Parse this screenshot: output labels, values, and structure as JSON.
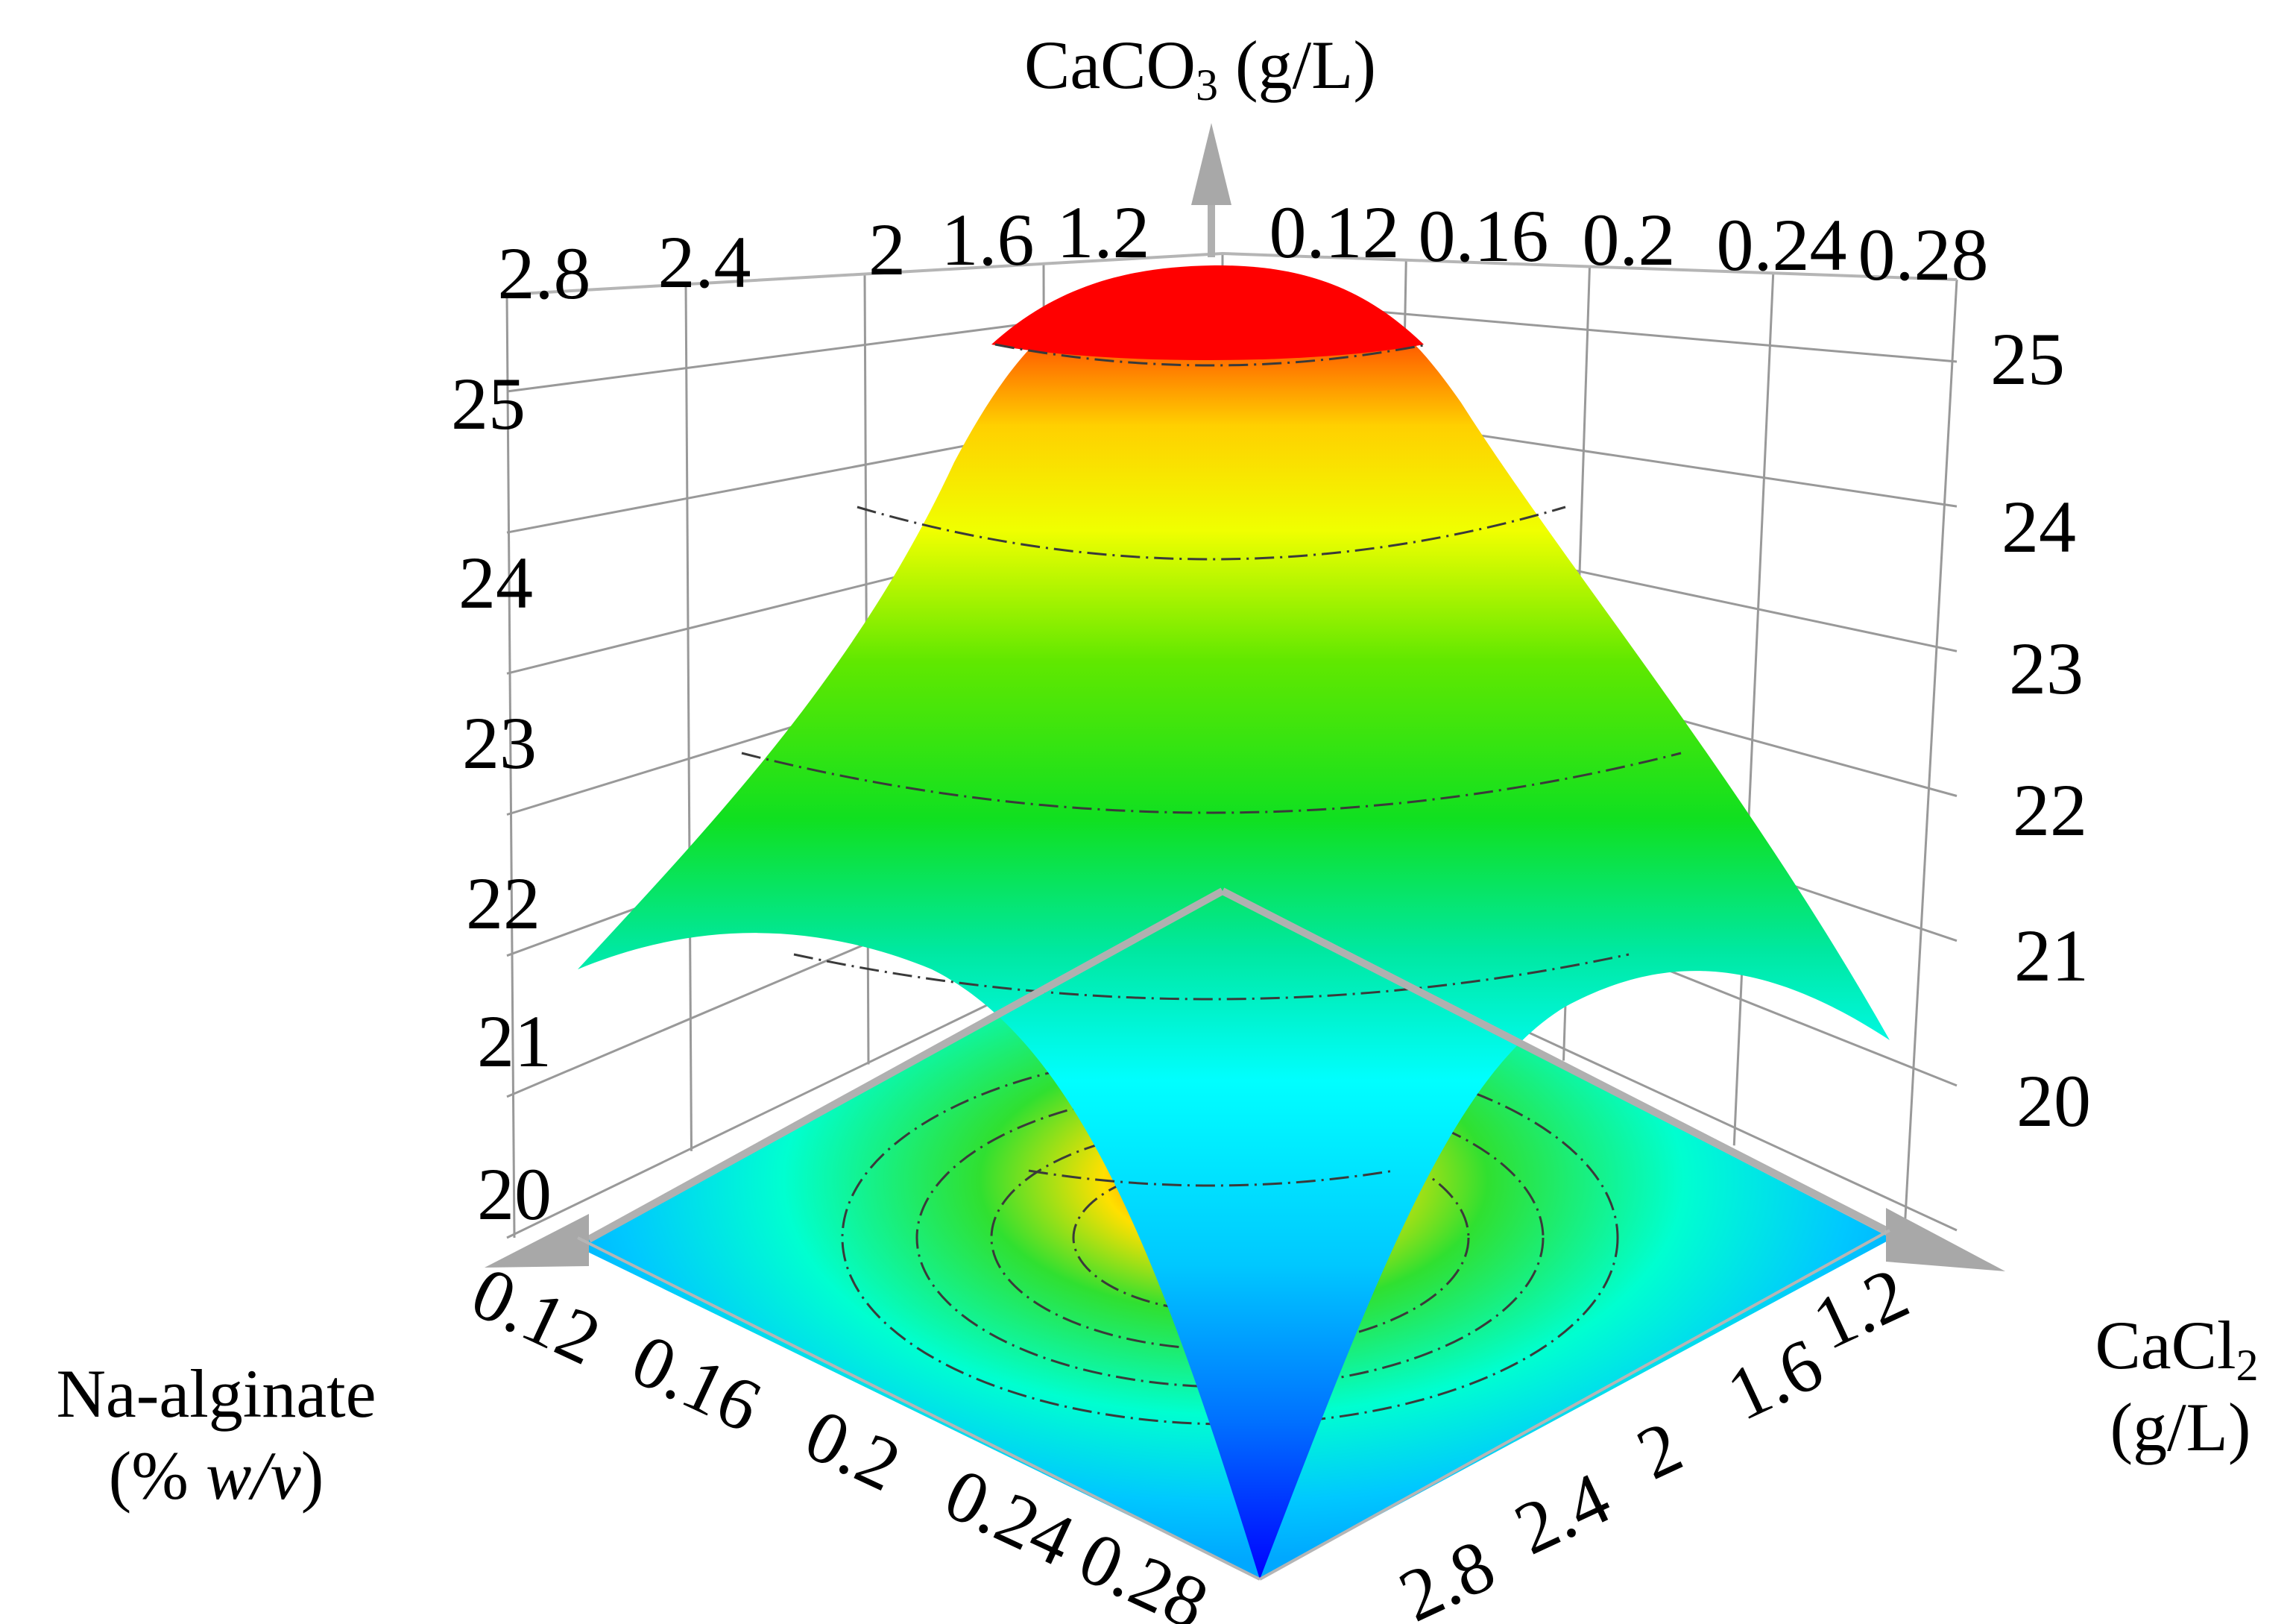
{
  "chart_data": {
    "type": "surface",
    "response_label": "CaCO3 (g/L)",
    "z_axis": {
      "title_parts": [
        "CaCO",
        "3",
        " (g/L)"
      ],
      "ticks_left": [
        "25",
        "24",
        "23",
        "22",
        "21",
        "20"
      ],
      "ticks_right": [
        "25",
        "24",
        "23",
        "22",
        "21",
        "20"
      ],
      "range": [
        19.6,
        25.6
      ]
    },
    "x_axis": {
      "title": "Na-alginate",
      "title_line2_parts": [
        "(% ",
        "w/v",
        ")"
      ],
      "ticks": [
        "0.12",
        "0.16",
        "0.2",
        "0.24",
        "0.28"
      ],
      "back_ticks": [
        "0.12",
        "0.16",
        "0.2",
        "0.24",
        "0.28"
      ],
      "range": [
        0.12,
        0.28
      ]
    },
    "y_axis": {
      "title_parts": [
        "CaCl",
        "2"
      ],
      "title_line2": "(g/L)",
      "ticks": [
        "1.2",
        "1.6",
        "2",
        "2.4",
        "2.8"
      ],
      "back_ticks": [
        "2.8",
        "2.4",
        "2",
        "1.6",
        "1.2"
      ],
      "range": [
        1.2,
        2.8
      ]
    },
    "surface": {
      "center_x": 0.2,
      "center_y": 2.0,
      "max_z": 25.5,
      "edge_mid_z": 21.3,
      "corner_near_z": 19.7,
      "contour_levels": [
        20,
        21,
        22,
        23,
        24,
        25
      ]
    },
    "colormap": [
      "#0000ff",
      "#00b0ff",
      "#00ffff",
      "#00ff80",
      "#40e000",
      "#ffff00",
      "#ff8000",
      "#ff0000"
    ]
  }
}
